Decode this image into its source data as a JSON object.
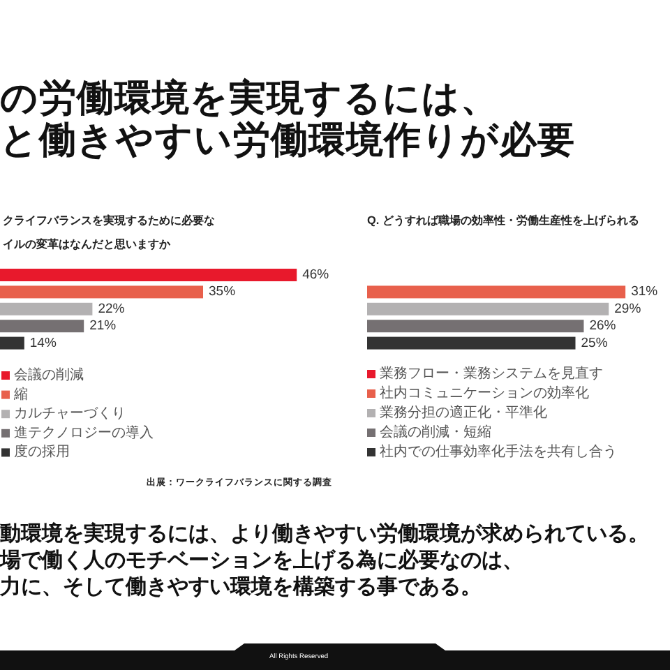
{
  "chart_data": [
    {
      "type": "bar",
      "orientation": "horizontal",
      "stacked": true,
      "title": "クライフバランスを実現するために必要な",
      "subtitle": "イルの変革はなんだと思いますか",
      "categories": [
        null,
        null,
        null,
        null,
        null
      ],
      "series": [
        {
          "name": "会議の削減",
          "color": "#e8192c",
          "values": [
            46,
            null,
            null,
            null,
            null
          ],
          "value_labels": [
            "46%",
            null,
            null,
            null,
            null
          ]
        },
        {
          "name": "縮",
          "color": "#e8604c",
          "values": [
            null,
            35,
            null,
            null,
            null
          ],
          "value_labels": [
            null,
            "35%",
            null,
            null,
            null
          ]
        },
        {
          "name": "カルチャーづくり",
          "color": "#b3b1b2",
          "values": [
            null,
            null,
            22,
            null,
            null
          ],
          "value_labels": [
            null,
            null,
            "22%",
            null,
            null
          ]
        },
        {
          "name": "進テクノロジーの導入",
          "color": "#757072",
          "values": [
            null,
            null,
            null,
            21,
            null
          ],
          "value_labels": [
            null,
            null,
            null,
            "21%",
            null
          ]
        },
        {
          "name": "度の採用",
          "color": "#333333",
          "values": [
            null,
            null,
            null,
            null,
            14
          ],
          "value_labels": [
            null,
            null,
            null,
            null,
            "14%"
          ]
        }
      ],
      "legend": "bottom",
      "annotations": [
        "出展：ワークライフバランスに関する調査"
      ]
    },
    {
      "type": "bar",
      "orientation": "horizontal",
      "stacked": true,
      "title": "Q. どうすれば職場の効率性・労働生産性を上げられる",
      "categories": [
        null,
        null,
        null,
        null,
        null
      ],
      "series": [
        {
          "name": "業務フロー・業務システムを見直す",
          "color": "#e8192c",
          "values": [
            null,
            null,
            null,
            null,
            null
          ]
        },
        {
          "name": "社内コミュニケーションの効率化",
          "color": "#e8604c",
          "values": [
            null,
            31,
            null,
            null,
            null
          ],
          "value_labels": [
            null,
            "31%",
            null,
            null,
            null
          ]
        },
        {
          "name": "業務分担の適正化・平準化",
          "color": "#b3b1b2",
          "values": [
            null,
            null,
            29,
            null,
            null
          ],
          "value_labels": [
            null,
            null,
            "29%",
            null,
            null
          ]
        },
        {
          "name": "会議の削減・短縮",
          "color": "#757072",
          "values": [
            null,
            null,
            null,
            26,
            null
          ],
          "value_labels": [
            null,
            null,
            null,
            "26%",
            null
          ]
        },
        {
          "name": "社内での仕事効率化手法を共有し合う",
          "color": "#333333",
          "values": [
            null,
            null,
            null,
            null,
            25
          ],
          "value_labels": [
            null,
            null,
            null,
            null,
            "25%"
          ]
        }
      ],
      "legend": "bottom"
    },
    {
      "type": "other",
      "title": "の労働環境を実現するには、",
      "subtitle": "と働きやすい労働環境作りが必要",
      "annotations": [
        "動環境を実現するには、より働きやすい労働環境が求められている。",
        "場で働く人のモチベーションを上げる為に必要なのは、",
        "力に、そして働きやすい環境を構築する事である。",
        "All Rights Reserved"
      ]
    }
  ]
}
